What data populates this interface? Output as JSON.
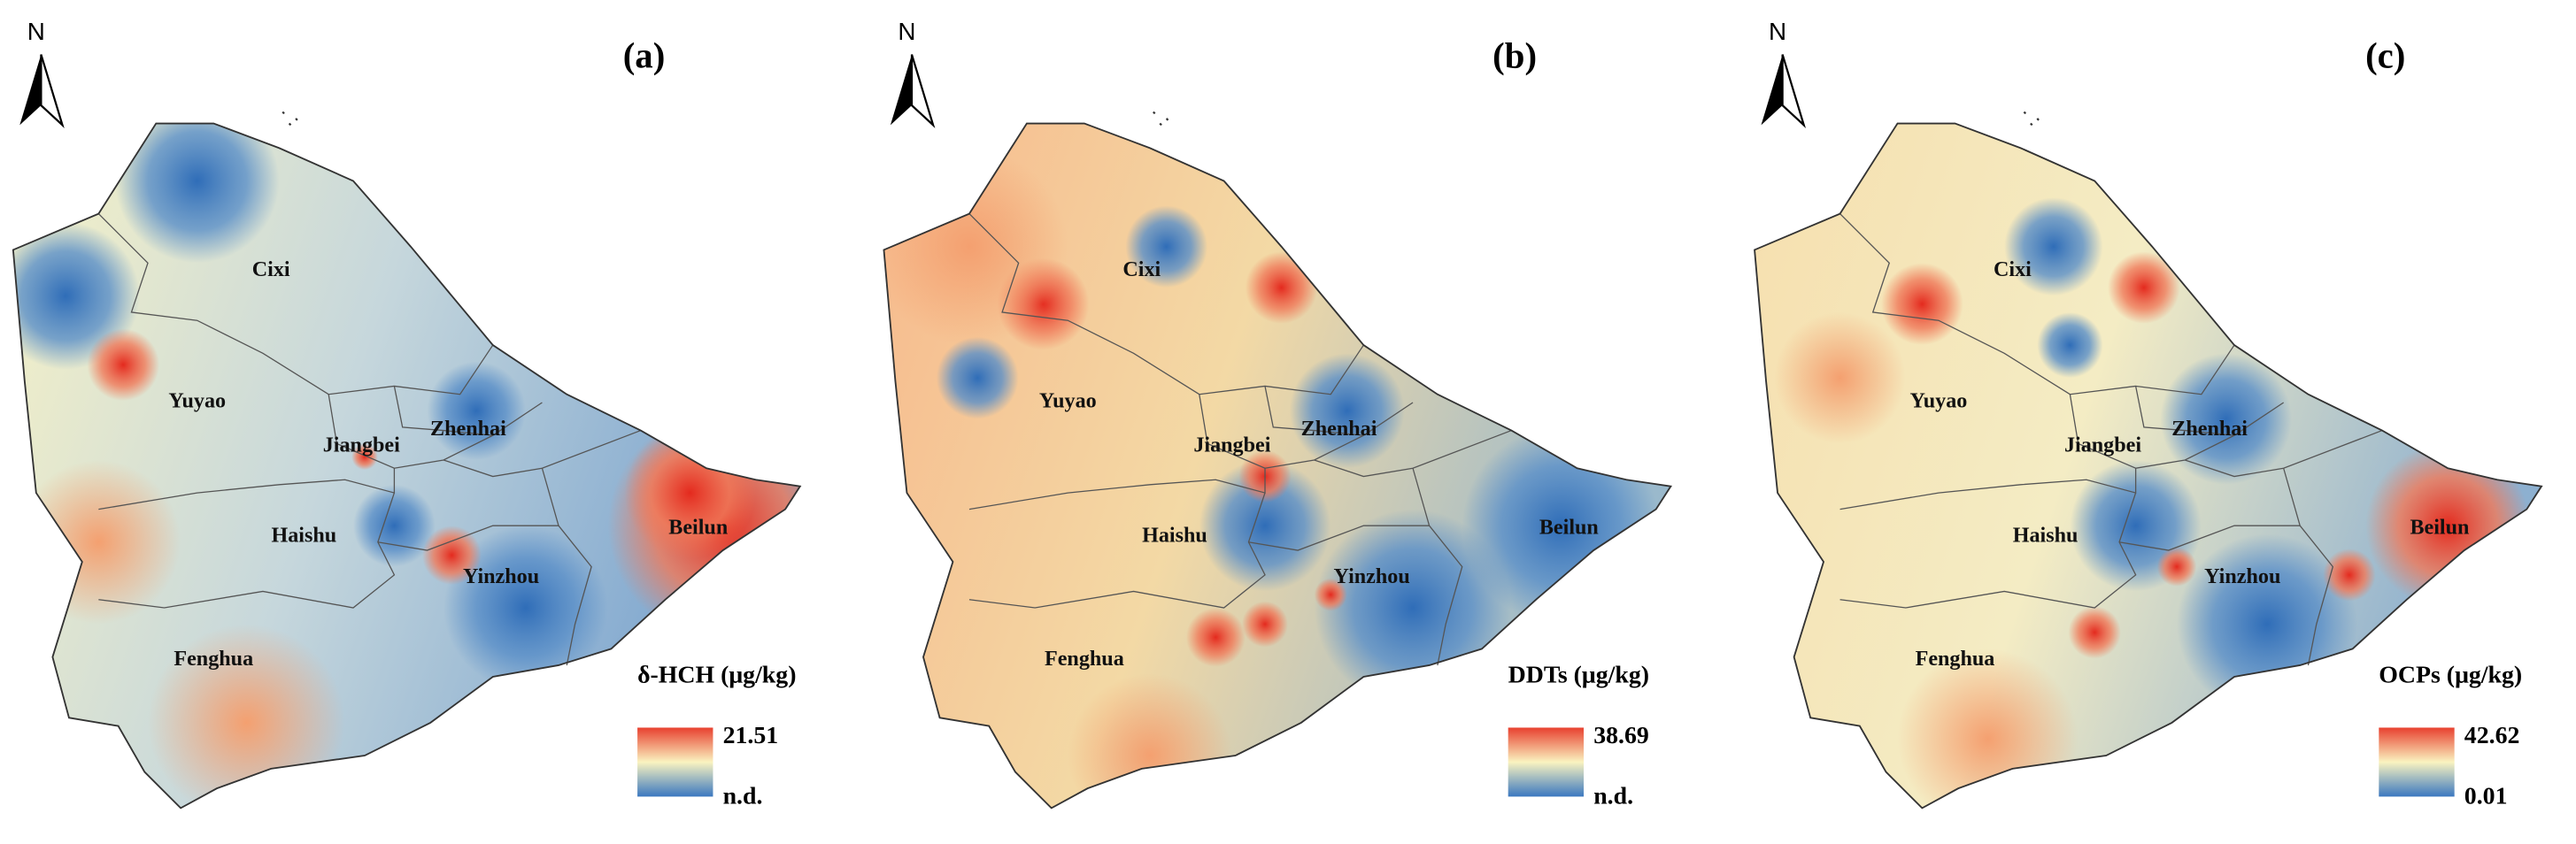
{
  "panels": [
    {
      "letter": "(a)",
      "north": "N",
      "legend": {
        "title": "δ-HCH (μg/kg)",
        "max": "21.51",
        "min": "n.d."
      },
      "districts": [
        "Cixi",
        "Yuyao",
        "Jiangbei",
        "Zhenhai",
        "Haishu",
        "Yinzhou",
        "Beilun",
        "Fenghua"
      ]
    },
    {
      "letter": "(b)",
      "north": "N",
      "legend": {
        "title": "DDTs (μg/kg)",
        "max": "38.69",
        "min": "n.d."
      },
      "districts": [
        "Cixi",
        "Yuyao",
        "Jiangbei",
        "Zhenhai",
        "Haishu",
        "Yinzhou",
        "Beilun",
        "Fenghua"
      ]
    },
    {
      "letter": "(c)",
      "north": "N",
      "legend": {
        "title": "OCPs (μg/kg)",
        "max": "42.62",
        "min": "0.01"
      },
      "districts": [
        "Cixi",
        "Yuyao",
        "Jiangbei",
        "Zhenhai",
        "Haishu",
        "Yinzhou",
        "Beilun",
        "Fenghua"
      ]
    }
  ]
}
